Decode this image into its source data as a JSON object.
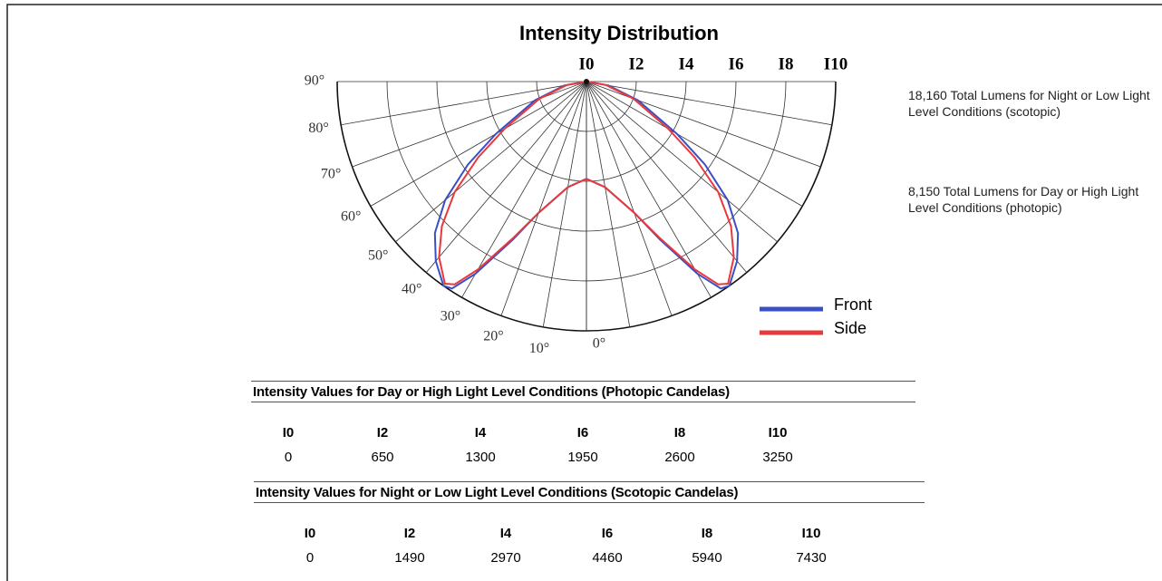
{
  "chart_data": {
    "type": "polar",
    "title": "Intensity Distribution",
    "theta": [
      0,
      10,
      20,
      25,
      30,
      33,
      35,
      40,
      45,
      50,
      55,
      60,
      70,
      80,
      90
    ],
    "series": [
      {
        "name": "Front",
        "color": "#3b4fc4",
        "values": [
          3.9,
          4.3,
          5.6,
          7.0,
          8.9,
          9.9,
          10.0,
          9.4,
          8.6,
          7.4,
          5.8,
          4.2,
          2.2,
          0.9,
          0
        ]
      },
      {
        "name": "Side",
        "color": "#e8393c",
        "values": [
          3.9,
          4.3,
          5.6,
          6.9,
          8.7,
          9.7,
          9.9,
          9.2,
          8.2,
          6.9,
          5.3,
          3.8,
          2.0,
          0.8,
          0
        ]
      }
    ],
    "rlim": [
      0,
      10
    ],
    "rticks": [
      {
        "value": 0,
        "label": "I0"
      },
      {
        "value": 2,
        "label": "I2"
      },
      {
        "value": 4,
        "label": "I4"
      },
      {
        "value": 6,
        "label": "I6"
      },
      {
        "value": 8,
        "label": "I8"
      },
      {
        "value": 10,
        "label": "I10"
      }
    ],
    "thetaticks": [
      {
        "value": 0,
        "label": "0°"
      },
      {
        "value": 10,
        "label": "10°"
      },
      {
        "value": 20,
        "label": "20°"
      },
      {
        "value": 30,
        "label": "30°"
      },
      {
        "value": 40,
        "label": "40°"
      },
      {
        "value": 50,
        "label": "50°"
      },
      {
        "value": 60,
        "label": "60°"
      },
      {
        "value": 70,
        "label": "70°"
      },
      {
        "value": 80,
        "label": "80°"
      },
      {
        "value": 90,
        "label": "90°"
      }
    ],
    "grid": true
  },
  "notes": [
    "18,160 Total Lumens for Night or Low Light Level Conditions (scotopic)",
    "8,150 Total Lumens for Day or High Light Level Conditions (photopic)"
  ],
  "tables": [
    {
      "title": "Intensity Values for Day or High Light Level Conditions (Photopic Candelas)",
      "header": [
        "I0",
        "I2",
        "I4",
        "I6",
        "I8",
        "I10"
      ],
      "row": [
        "0",
        "650",
        "1300",
        "1950",
        "2600",
        "3250"
      ]
    },
    {
      "title": "Intensity Values for Night or Low Light Level Conditions (Scotopic Candelas)",
      "header": [
        "I0",
        "I2",
        "I4",
        "I6",
        "I8",
        "I10"
      ],
      "row": [
        "0",
        "1490",
        "2970",
        "4460",
        "5940",
        "7430"
      ]
    }
  ]
}
